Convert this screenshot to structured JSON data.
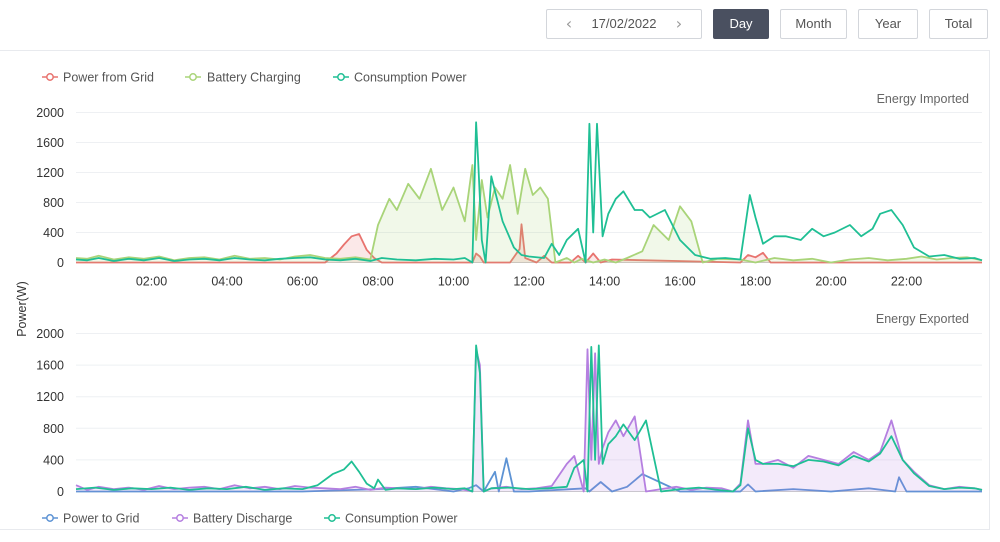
{
  "toolbar": {
    "date": "17/02/2022",
    "prev_icon": "chevron-left-icon",
    "next_icon": "chevron-right-icon",
    "buttons": [
      {
        "label": "Day",
        "active": true
      },
      {
        "label": "Month",
        "active": false
      },
      {
        "label": "Year",
        "active": false
      },
      {
        "label": "Total",
        "active": false
      }
    ]
  },
  "colors": {
    "power_from_grid": "#e8736f",
    "battery_charging": "#a9d479",
    "consumption_power": "#1fbf94",
    "power_to_grid": "#5d93d4",
    "battery_discharge": "#b57fe0"
  },
  "chart_data": [
    {
      "type": "area",
      "title": "Energy Imported",
      "ylabel": "Power(W)",
      "ylim": [
        0,
        2000
      ],
      "yticks": [
        "0",
        "400",
        "800",
        "1200",
        "1600",
        "2000"
      ],
      "xlim": [
        0,
        24
      ],
      "xticks": [
        "02:00",
        "04:00",
        "06:00",
        "08:00",
        "10:00",
        "12:00",
        "14:00",
        "16:00",
        "18:00",
        "20:00",
        "22:00"
      ],
      "grid": true,
      "legend_position": "top-left",
      "series": [
        {
          "name": "Power from Grid",
          "fill": true,
          "x": [
            0,
            6.6,
            6.9,
            7.1,
            7.3,
            7.5,
            7.7,
            7.9,
            8.1,
            10.5,
            10.6,
            10.7,
            10.8,
            11.5,
            11.75,
            11.8,
            11.9,
            12.2,
            12.4,
            12.6,
            13.1,
            13.3,
            13.5,
            13.7,
            13.9,
            14.2,
            17.6,
            17.8,
            18.0,
            18.2,
            18.4,
            24
          ],
          "y": [
            0,
            0,
            120,
            240,
            350,
            380,
            170,
            60,
            0,
            0,
            120,
            80,
            0,
            0,
            180,
            510,
            60,
            0,
            90,
            0,
            0,
            90,
            0,
            120,
            0,
            40,
            0,
            100,
            70,
            130,
            0,
            0
          ]
        },
        {
          "name": "Battery Charging",
          "fill": true,
          "x": [
            0,
            0.3,
            0.6,
            1.0,
            1.4,
            1.8,
            2.2,
            2.6,
            3.0,
            3.4,
            3.8,
            4.2,
            4.6,
            5.0,
            5.4,
            5.8,
            6.2,
            6.6,
            7.0,
            7.4,
            7.8,
            8.0,
            8.3,
            8.5,
            8.8,
            9.1,
            9.4,
            9.7,
            10.0,
            10.3,
            10.5,
            10.6,
            10.75,
            10.9,
            11.1,
            11.3,
            11.5,
            11.7,
            11.9,
            12.1,
            12.3,
            12.5,
            12.7,
            13.0,
            13.2,
            13.4,
            13.7,
            14.0,
            14.3,
            14.6,
            15.0,
            15.3,
            15.7,
            16.0,
            16.3,
            16.6,
            17.0,
            17.6,
            18.0,
            18.5,
            19.0,
            19.5,
            20.0,
            20.5,
            21.0,
            21.5,
            22.0,
            22.4,
            22.8,
            23.2,
            23.6,
            24.0
          ],
          "y": [
            60,
            50,
            90,
            40,
            70,
            50,
            80,
            30,
            60,
            70,
            40,
            90,
            50,
            60,
            40,
            80,
            100,
            60,
            50,
            70,
            40,
            500,
            850,
            700,
            1050,
            850,
            1250,
            700,
            1000,
            550,
            1300,
            300,
            1100,
            600,
            1000,
            850,
            1300,
            650,
            1250,
            900,
            1000,
            850,
            0,
            60,
            0,
            50,
            0,
            40,
            0,
            60,
            150,
            500,
            300,
            750,
            550,
            0,
            50,
            40,
            0,
            60,
            30,
            50,
            0,
            40,
            60,
            30,
            50,
            80,
            40,
            60,
            70,
            30
          ]
        },
        {
          "name": "Consumption Power",
          "fill": false,
          "x": [
            0,
            0.3,
            0.6,
            1.0,
            1.4,
            1.8,
            2.2,
            2.6,
            3.0,
            3.4,
            3.8,
            4.2,
            4.6,
            5.0,
            5.4,
            5.8,
            6.2,
            6.6,
            7.0,
            7.4,
            7.8,
            8.1,
            8.5,
            9.0,
            9.5,
            10.0,
            10.3,
            10.5,
            10.6,
            10.65,
            10.75,
            10.85,
            11.0,
            11.3,
            11.6,
            11.8,
            12.0,
            12.4,
            12.6,
            12.8,
            13.0,
            13.3,
            13.5,
            13.6,
            13.7,
            13.8,
            13.95,
            14.1,
            14.3,
            14.5,
            14.8,
            15.0,
            15.2,
            15.6,
            16.0,
            16.4,
            16.8,
            17.2,
            17.6,
            17.85,
            18.0,
            18.2,
            18.5,
            18.8,
            19.2,
            19.5,
            19.8,
            20.1,
            20.5,
            20.8,
            21.1,
            21.3,
            21.6,
            21.9,
            22.2,
            22.6,
            23.0,
            23.4,
            23.8,
            24.0
          ],
          "y": [
            40,
            30,
            60,
            20,
            50,
            30,
            60,
            20,
            40,
            50,
            30,
            60,
            40,
            30,
            50,
            60,
            70,
            40,
            30,
            50,
            20,
            60,
            40,
            30,
            50,
            40,
            60,
            0,
            1870,
            1400,
            300,
            0,
            1150,
            550,
            200,
            100,
            80,
            60,
            250,
            100,
            300,
            450,
            0,
            1850,
            400,
            1850,
            350,
            650,
            850,
            950,
            700,
            700,
            600,
            700,
            300,
            100,
            50,
            60,
            40,
            900,
            600,
            250,
            350,
            350,
            300,
            450,
            350,
            400,
            500,
            350,
            450,
            650,
            700,
            500,
            200,
            80,
            100,
            50,
            60,
            30
          ]
        }
      ]
    },
    {
      "type": "area",
      "title": "Energy Exported",
      "ylabel": "Power(W)",
      "ylim": [
        0,
        2000
      ],
      "yticks": [
        "0",
        "400",
        "800",
        "1200",
        "1600",
        "2000"
      ],
      "xlim": [
        0,
        24
      ],
      "grid": true,
      "legend_position": "bottom-left",
      "series": [
        {
          "name": "Power to Grid",
          "fill": false,
          "x": [
            0,
            4,
            6,
            8,
            9,
            10,
            10.4,
            10.6,
            10.8,
            11.1,
            11.2,
            11.4,
            11.6,
            12,
            13.5,
            13.6,
            13.9,
            14.2,
            14.6,
            15.0,
            16.0,
            17.6,
            17.8,
            18.0,
            19.0,
            20.0,
            21.0,
            21.7,
            21.8,
            22.0,
            24
          ],
          "y": [
            0,
            0,
            0,
            30,
            60,
            0,
            40,
            80,
            0,
            250,
            0,
            420,
            0,
            0,
            40,
            0,
            120,
            0,
            60,
            220,
            0,
            0,
            90,
            0,
            30,
            0,
            40,
            0,
            180,
            0,
            0
          ]
        },
        {
          "name": "Battery Discharge",
          "fill": true,
          "x": [
            0,
            0.3,
            0.6,
            1.0,
            1.4,
            1.8,
            2.2,
            2.6,
            3.0,
            3.4,
            3.8,
            4.2,
            4.6,
            5.0,
            5.4,
            5.8,
            6.2,
            6.6,
            7.0,
            7.4,
            7.8,
            8.2,
            8.6,
            9.0,
            9.4,
            9.8,
            10.2,
            10.5,
            10.6,
            10.7,
            10.8,
            11.0,
            11.4,
            11.8,
            12.2,
            12.6,
            13.0,
            13.2,
            13.45,
            13.55,
            13.65,
            13.75,
            13.85,
            13.95,
            14.1,
            14.3,
            14.5,
            14.8,
            15.1,
            15.5,
            15.9,
            16.3,
            16.7,
            17.1,
            17.4,
            17.6,
            17.8,
            18.0,
            18.2,
            18.6,
            19.0,
            19.4,
            19.8,
            20.2,
            20.6,
            21.0,
            21.3,
            21.6,
            21.9,
            22.2,
            22.6,
            23.0,
            23.4,
            23.8,
            24.0
          ],
          "y": [
            80,
            20,
            60,
            30,
            50,
            20,
            70,
            30,
            50,
            60,
            30,
            80,
            40,
            60,
            30,
            70,
            50,
            40,
            30,
            60,
            20,
            50,
            40,
            30,
            60,
            40,
            30,
            0,
            1800,
            1600,
            0,
            40,
            60,
            30,
            40,
            70,
            350,
            450,
            0,
            1800,
            400,
            1750,
            350,
            550,
            750,
            900,
            700,
            950,
            0,
            30,
            60,
            20,
            50,
            40,
            0,
            100,
            900,
            350,
            350,
            400,
            300,
            450,
            400,
            350,
            500,
            400,
            500,
            900,
            400,
            250,
            80,
            30,
            60,
            40,
            20
          ]
        },
        {
          "name": "Consumption Power",
          "fill": false,
          "x": [
            0,
            0.5,
            1.0,
            1.5,
            2.0,
            2.5,
            3.0,
            3.5,
            4.0,
            4.5,
            5.0,
            5.5,
            6.0,
            6.4,
            6.8,
            7.1,
            7.3,
            7.5,
            7.7,
            7.9,
            8.0,
            8.2,
            8.5,
            9.0,
            9.5,
            10.0,
            10.3,
            10.5,
            10.6,
            10.7,
            10.8,
            11.0,
            11.5,
            12.0,
            12.5,
            13.0,
            13.2,
            13.45,
            13.55,
            13.65,
            13.75,
            13.85,
            13.95,
            14.1,
            14.3,
            14.5,
            14.8,
            15.1,
            15.5,
            16.0,
            16.5,
            17.0,
            17.4,
            17.6,
            17.8,
            18.0,
            18.2,
            18.6,
            19.0,
            19.4,
            19.8,
            20.2,
            20.6,
            21.0,
            21.3,
            21.6,
            21.9,
            22.2,
            22.6,
            23.0,
            23.4,
            23.8,
            24.0
          ],
          "y": [
            30,
            50,
            20,
            40,
            30,
            50,
            20,
            40,
            30,
            60,
            20,
            40,
            30,
            80,
            220,
            280,
            380,
            250,
            100,
            40,
            150,
            20,
            40,
            30,
            50,
            30,
            40,
            0,
            1850,
            1500,
            0,
            40,
            50,
            30,
            40,
            60,
            300,
            400,
            0,
            1830,
            400,
            1850,
            350,
            600,
            700,
            850,
            650,
            900,
            0,
            30,
            50,
            20,
            0,
            80,
            800,
            400,
            350,
            350,
            320,
            400,
            380,
            330,
            450,
            380,
            480,
            700,
            400,
            230,
            70,
            30,
            50,
            40,
            20
          ]
        }
      ]
    }
  ],
  "legends": {
    "top": [
      "Power from Grid",
      "Battery Charging",
      "Consumption Power"
    ],
    "bottom": [
      "Power to Grid",
      "Battery Discharge",
      "Consumption Power"
    ]
  }
}
